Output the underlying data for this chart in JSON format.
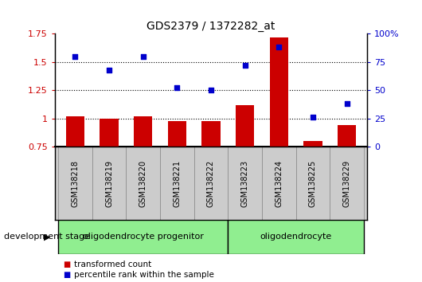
{
  "title": "GDS2379 / 1372282_at",
  "samples": [
    "GSM138218",
    "GSM138219",
    "GSM138220",
    "GSM138221",
    "GSM138222",
    "GSM138223",
    "GSM138224",
    "GSM138225",
    "GSM138229"
  ],
  "transformed_count": [
    1.02,
    1.0,
    1.02,
    0.98,
    0.98,
    1.12,
    1.72,
    0.8,
    0.94
  ],
  "percentile_rank": [
    80,
    68,
    80,
    52,
    50,
    72,
    88,
    26,
    38
  ],
  "bar_color": "#cc0000",
  "dot_color": "#0000cc",
  "ylim_left": [
    0.75,
    1.75
  ],
  "ylim_right": [
    0,
    100
  ],
  "yticks_left": [
    0.75,
    1.0,
    1.25,
    1.5,
    1.75
  ],
  "ytick_labels_left": [
    "0.75",
    "1",
    "1.25",
    "1.5",
    "1.75"
  ],
  "yticks_right": [
    0,
    25,
    50,
    75,
    100
  ],
  "ytick_labels_right": [
    "0",
    "25",
    "50",
    "75",
    "100%"
  ],
  "group1_label": "oligodendrocyte progenitor",
  "group2_label": "oligodendrocyte",
  "group1_count": 5,
  "group2_count": 4,
  "development_stage_label": "development stage",
  "legend_bar_label": "transformed count",
  "legend_dot_label": "percentile rank within the sample",
  "group_bg_color": "#90ee90",
  "tick_bg_color": "#cccccc",
  "grid_line_values": [
    1.0,
    1.25,
    1.5
  ]
}
